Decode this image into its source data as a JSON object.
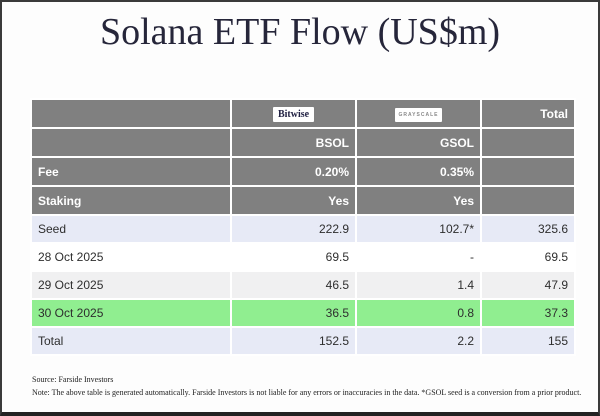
{
  "title": "Solana ETF Flow (US$m)",
  "colors": {
    "header_gray": "#808080",
    "row_tint": "#e7eaf6",
    "row_alt": "#f0f0f1",
    "row_green": "#90ee90",
    "title_color": "#26263a"
  },
  "table": {
    "header": {
      "bitwise_logo": "Bitwise",
      "grayscale_logo": "GRAYSCALE",
      "total_label": "Total",
      "bsol": "BSOL",
      "gsol": "GSOL"
    },
    "rows": [
      {
        "label": "Fee",
        "bsol": "0.20%",
        "gsol": "0.35%",
        "total": ""
      },
      {
        "label": "Staking",
        "bsol": "Yes",
        "gsol": "Yes",
        "total": ""
      },
      {
        "label": "Seed",
        "bsol": "222.9",
        "gsol": "102.7*",
        "total": "325.6"
      },
      {
        "label": "28 Oct 2025",
        "bsol": "69.5",
        "gsol": "-",
        "total": "69.5"
      },
      {
        "label": "29 Oct 2025",
        "bsol": "46.5",
        "gsol": "1.4",
        "total": "47.9"
      },
      {
        "label": "30 Oct 2025",
        "bsol": "36.5",
        "gsol": "0.8",
        "total": "37.3"
      },
      {
        "label": "Total",
        "bsol": "152.5",
        "gsol": "2.2",
        "total": "155"
      }
    ]
  },
  "footer": {
    "source": "Source: Farside Investors",
    "note": "Note: The above table is generated automatically. Farside Investors is not liable for any errors or inaccuracies in the data. *GSOL seed is a conversion from a prior product."
  },
  "chart_data": {
    "type": "table",
    "title": "Solana ETF Flow (US$m)",
    "columns": [
      "",
      "BSOL (Bitwise)",
      "GSOL (Grayscale)",
      "Total"
    ],
    "rows": [
      [
        "Fee",
        "0.20%",
        "0.35%",
        ""
      ],
      [
        "Staking",
        "Yes",
        "Yes",
        ""
      ],
      [
        "Seed",
        222.9,
        "102.7*",
        325.6
      ],
      [
        "28 Oct 2025",
        69.5,
        "-",
        69.5
      ],
      [
        "29 Oct 2025",
        46.5,
        1.4,
        47.9
      ],
      [
        "30 Oct 2025",
        36.5,
        0.8,
        37.3
      ],
      [
        "Total",
        152.5,
        2.2,
        155
      ]
    ],
    "footnotes": [
      "Source: Farside Investors",
      "Note: The above table is generated automatically. Farside Investors is not liable for any errors or inaccuracies in the data. *GSOL seed is a conversion from a prior product."
    ]
  }
}
